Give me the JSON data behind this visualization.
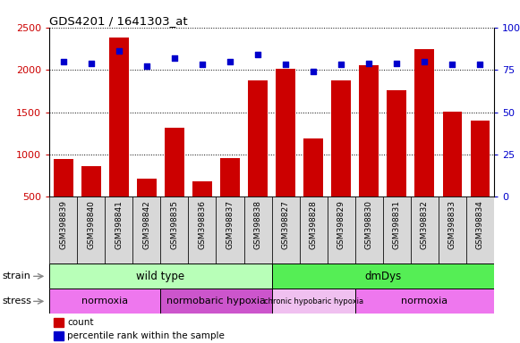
{
  "title": "GDS4201 / 1641303_at",
  "samples": [
    "GSM398839",
    "GSM398840",
    "GSM398841",
    "GSM398842",
    "GSM398835",
    "GSM398836",
    "GSM398837",
    "GSM398838",
    "GSM398827",
    "GSM398828",
    "GSM398829",
    "GSM398830",
    "GSM398831",
    "GSM398832",
    "GSM398833",
    "GSM398834"
  ],
  "counts": [
    950,
    860,
    2380,
    720,
    1320,
    680,
    960,
    1880,
    2010,
    1190,
    1880,
    2050,
    1760,
    2240,
    1510,
    1400
  ],
  "percentile_ranks": [
    80,
    79,
    86,
    77,
    82,
    78,
    80,
    84,
    78,
    74,
    78,
    79,
    79,
    80,
    78,
    78
  ],
  "bar_color": "#cc0000",
  "dot_color": "#0000cc",
  "ylim_left": [
    500,
    2500
  ],
  "ylim_right": [
    0,
    100
  ],
  "yticks_left": [
    500,
    1000,
    1500,
    2000,
    2500
  ],
  "yticks_right": [
    0,
    25,
    50,
    75,
    100
  ],
  "strain_groups": [
    {
      "label": "wild type",
      "start": 0,
      "end": 8,
      "color": "#b8ffb8"
    },
    {
      "label": "dmDys",
      "start": 8,
      "end": 16,
      "color": "#55ee55"
    }
  ],
  "stress_groups": [
    {
      "label": "normoxia",
      "start": 0,
      "end": 4,
      "color": "#ee77ee"
    },
    {
      "label": "normobaric hypoxia",
      "start": 4,
      "end": 8,
      "color": "#cc55cc"
    },
    {
      "label": "chronic hypobaric hypoxia",
      "start": 8,
      "end": 11,
      "color": "#f0c0f0"
    },
    {
      "label": "normoxia",
      "start": 11,
      "end": 16,
      "color": "#ee77ee"
    }
  ],
  "legend_count_color": "#cc0000",
  "legend_dot_color": "#0000cc",
  "tick_label_color_left": "#cc0000",
  "tick_label_color_right": "#0000cc"
}
